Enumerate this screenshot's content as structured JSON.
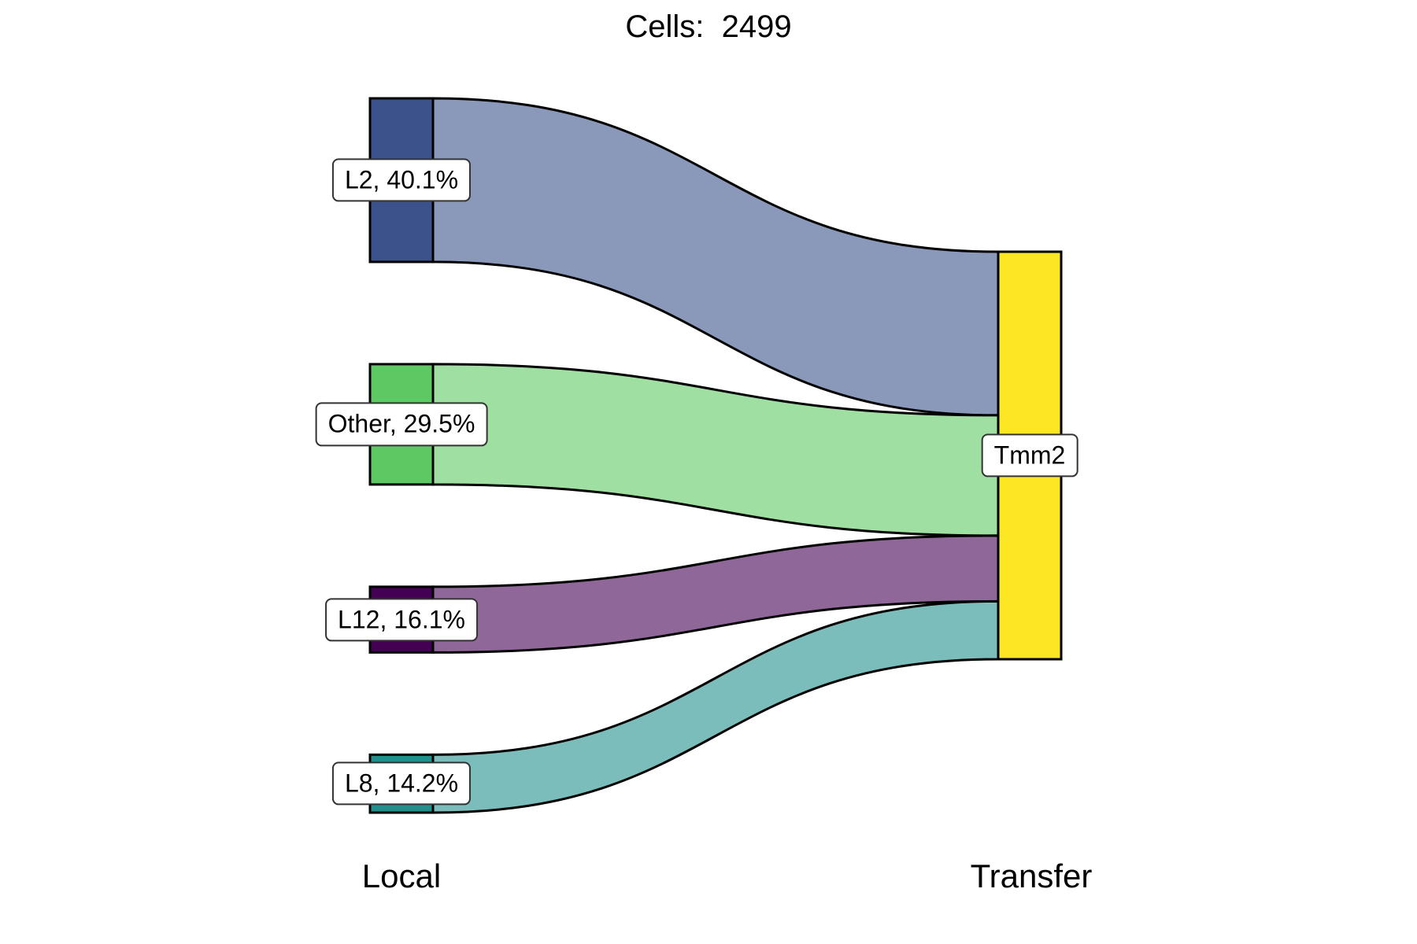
{
  "title": {
    "prefix": "Cells:",
    "count": "2499"
  },
  "chart_data": {
    "type": "sankey",
    "axes": [
      "Local",
      "Transfer"
    ],
    "total_cells": 2499,
    "nodes_left": [
      {
        "name": "L2",
        "percent": 40.1,
        "label": "L2, 40.1%",
        "color": "#3B528B",
        "flow_color": "#8A99BA"
      },
      {
        "name": "Other",
        "percent": 29.5,
        "label": "Other, 29.5%",
        "color": "#5EC962",
        "flow_color": "#9FDFA1"
      },
      {
        "name": "L12",
        "percent": 16.1,
        "label": "L12, 16.1%",
        "color": "#440154",
        "flow_color": "#8F6798"
      },
      {
        "name": "L8",
        "percent": 14.2,
        "label": "L8, 14.2%",
        "color": "#21908C",
        "flow_color": "#7ABDBA"
      }
    ],
    "nodes_right": [
      {
        "name": "Tmm2",
        "percent": 100,
        "label": "Tmm2",
        "color": "#FDE725"
      }
    ],
    "flows": [
      {
        "from": "L2",
        "to": "Tmm2",
        "percent": 40.1
      },
      {
        "from": "Other",
        "to": "Tmm2",
        "percent": 29.5
      },
      {
        "from": "L12",
        "to": "Tmm2",
        "percent": 16.1
      },
      {
        "from": "L8",
        "to": "Tmm2",
        "percent": 14.2
      }
    ],
    "right_stack_order": [
      "L2",
      "Other",
      "L12",
      "L8"
    ]
  }
}
